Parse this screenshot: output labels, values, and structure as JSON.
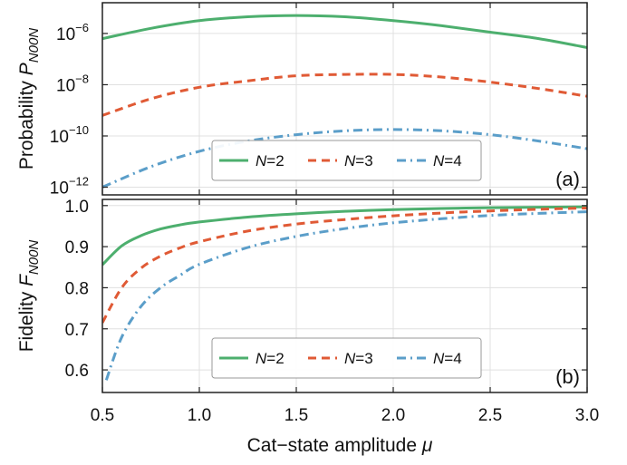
{
  "chart_data": [
    {
      "type": "line",
      "panel_label": "(a)",
      "ylabel_main": "Probability",
      "ylabel_symbol": "P",
      "ylabel_subscript": "N00N",
      "yscale": "log",
      "xlim": [
        0.5,
        3.0
      ],
      "ylim_log10": [
        -12.3,
        -4.8
      ],
      "yticks": [
        {
          "exp": -6,
          "label": "10",
          "sup": "−6"
        },
        {
          "exp": -8,
          "label": "10",
          "sup": "−8"
        },
        {
          "exp": -10,
          "label": "10",
          "sup": "−10"
        },
        {
          "exp": -12,
          "label": "10",
          "sup": "−12"
        }
      ],
      "grid": true,
      "legend_position": "lower-center",
      "series": [
        {
          "name": "N=2",
          "italic": "N",
          "suffix": "=2",
          "color": "#4daf6e",
          "dash": "solid",
          "x": [
            0.5,
            0.75,
            1.0,
            1.25,
            1.5,
            1.75,
            2.0,
            2.25,
            2.5,
            2.75,
            3.0
          ],
          "y_log10": [
            -6.2,
            -5.8,
            -5.5,
            -5.35,
            -5.3,
            -5.35,
            -5.5,
            -5.7,
            -5.95,
            -6.2,
            -6.55
          ]
        },
        {
          "name": "N=3",
          "italic": "N",
          "suffix": "=3",
          "color": "#e05a35",
          "dash": "dashed",
          "x": [
            0.5,
            0.75,
            1.0,
            1.25,
            1.5,
            1.75,
            2.0,
            2.25,
            2.5,
            2.75,
            3.0
          ],
          "y_log10": [
            -9.2,
            -8.55,
            -8.1,
            -7.85,
            -7.65,
            -7.6,
            -7.6,
            -7.7,
            -7.9,
            -8.15,
            -8.45
          ]
        },
        {
          "name": "N=4",
          "italic": "N",
          "suffix": "=4",
          "color": "#5b9ec9",
          "dash": "dashdot",
          "x": [
            0.5,
            0.75,
            1.0,
            1.25,
            1.5,
            1.75,
            2.0,
            2.25,
            2.5,
            2.75,
            3.0
          ],
          "y_log10": [
            -12.0,
            -11.2,
            -10.6,
            -10.2,
            -9.95,
            -9.8,
            -9.75,
            -9.8,
            -9.95,
            -10.2,
            -10.5
          ]
        }
      ]
    },
    {
      "type": "line",
      "panel_label": "(b)",
      "ylabel_main": "Fidelity",
      "ylabel_symbol": "F",
      "ylabel_subscript": "N00N",
      "xlabel_main": "Cat−state amplitude",
      "xlabel_symbol": "μ",
      "xlim": [
        0.5,
        3.0
      ],
      "ylim": [
        0.545,
        1.015
      ],
      "xticks": [
        "0.5",
        "1.0",
        "1.5",
        "2.0",
        "2.5",
        "3.0"
      ],
      "xtick_values": [
        0.5,
        1.0,
        1.5,
        2.0,
        2.5,
        3.0
      ],
      "yticks": [
        "0.6",
        "0.7",
        "0.8",
        "0.9",
        "1.0"
      ],
      "ytick_values": [
        0.6,
        0.7,
        0.8,
        0.9,
        1.0
      ],
      "grid": true,
      "legend_position": "lower-center",
      "series": [
        {
          "name": "N=2",
          "italic": "N",
          "suffix": "=2",
          "color": "#4daf6e",
          "dash": "solid",
          "x": [
            0.5,
            0.6,
            0.7,
            0.8,
            0.9,
            1.0,
            1.25,
            1.5,
            1.75,
            2.0,
            2.25,
            2.5,
            2.75,
            3.0
          ],
          "y": [
            0.856,
            0.902,
            0.927,
            0.943,
            0.953,
            0.96,
            0.972,
            0.98,
            0.986,
            0.99,
            0.993,
            0.995,
            0.996,
            0.997
          ]
        },
        {
          "name": "N=3",
          "italic": "N",
          "suffix": "=3",
          "color": "#e05a35",
          "dash": "dashed",
          "x": [
            0.5,
            0.6,
            0.7,
            0.8,
            0.9,
            1.0,
            1.25,
            1.5,
            1.75,
            2.0,
            2.25,
            2.5,
            2.75,
            3.0
          ],
          "y": [
            0.715,
            0.8,
            0.848,
            0.877,
            0.897,
            0.912,
            0.938,
            0.955,
            0.966,
            0.975,
            0.982,
            0.987,
            0.991,
            0.994
          ]
        },
        {
          "name": "N=4",
          "italic": "N",
          "suffix": "=4",
          "color": "#5b9ec9",
          "dash": "dashdot",
          "x": [
            0.52,
            0.6,
            0.7,
            0.8,
            0.9,
            1.0,
            1.25,
            1.5,
            1.75,
            2.0,
            2.25,
            2.5,
            2.75,
            3.0
          ],
          "y": [
            0.575,
            0.68,
            0.755,
            0.8,
            0.83,
            0.857,
            0.898,
            0.925,
            0.944,
            0.958,
            0.968,
            0.976,
            0.981,
            0.985
          ]
        }
      ]
    }
  ]
}
